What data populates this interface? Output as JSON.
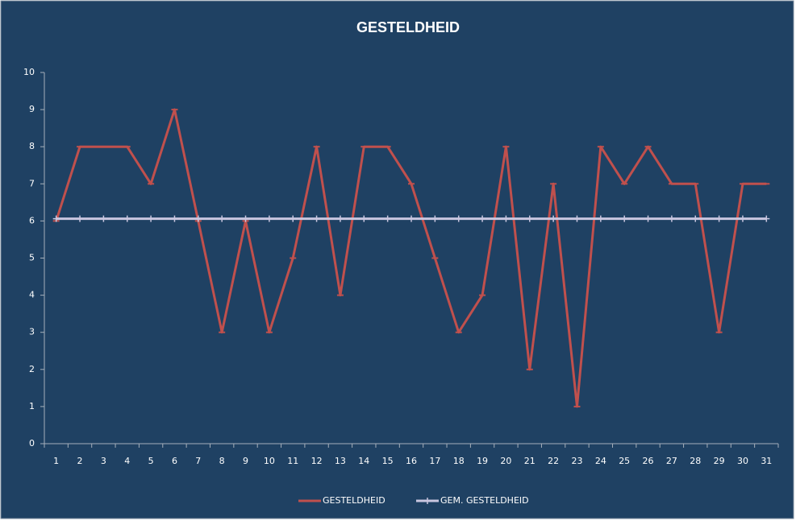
{
  "chart_data": {
    "type": "line",
    "title": "GESTELDHEID",
    "categories": [
      1,
      2,
      3,
      4,
      5,
      6,
      7,
      8,
      9,
      10,
      11,
      12,
      13,
      14,
      15,
      16,
      17,
      18,
      19,
      20,
      21,
      22,
      23,
      24,
      25,
      26,
      27,
      28,
      29,
      30,
      31
    ],
    "series": [
      {
        "name": "GESTELDHEID",
        "color": "#c0504d",
        "marker": "dash",
        "values": [
          6,
          8,
          8,
          8,
          7,
          9,
          6,
          3,
          6,
          3,
          5,
          8,
          4,
          8,
          8,
          7,
          5,
          3,
          4,
          8,
          2,
          7,
          1,
          8,
          7,
          8,
          7,
          7,
          3,
          7,
          7
        ]
      },
      {
        "name": "GEM. GESTELDHEID",
        "color": "#c9c6e0",
        "marker": "plus",
        "values": [
          6.06,
          6.06,
          6.06,
          6.06,
          6.06,
          6.06,
          6.06,
          6.06,
          6.06,
          6.06,
          6.06,
          6.06,
          6.06,
          6.06,
          6.06,
          6.06,
          6.06,
          6.06,
          6.06,
          6.06,
          6.06,
          6.06,
          6.06,
          6.06,
          6.06,
          6.06,
          6.06,
          6.06,
          6.06,
          6.06,
          6.06
        ]
      }
    ],
    "ylim": [
      0,
      10
    ],
    "yticks": [
      0,
      1,
      2,
      3,
      4,
      5,
      6,
      7,
      8,
      9,
      10
    ],
    "grid": false,
    "legend": "bottom"
  }
}
